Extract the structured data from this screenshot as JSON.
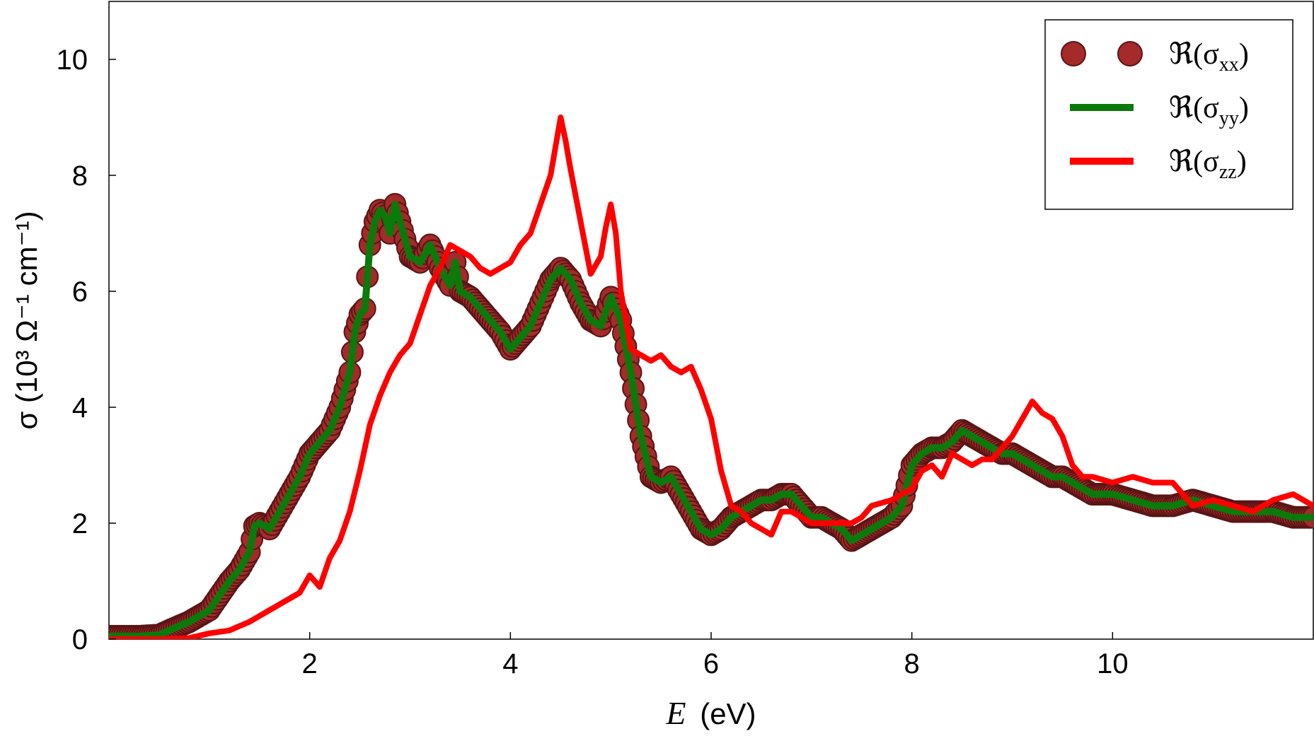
{
  "chart_data": {
    "type": "line",
    "xlabel": "E (eV)",
    "xlabel_var": "E",
    "xlabel_unit": "(eV)",
    "ylabel": "σ (10³ Ω⁻¹ cm⁻¹)",
    "xlim": [
      0,
      12
    ],
    "ylim": [
      0,
      11
    ],
    "x_ticks": [
      2,
      4,
      6,
      8,
      10
    ],
    "y_ticks": [
      0,
      2,
      4,
      6,
      8,
      10
    ],
    "grid": false,
    "legend_position": "top-right",
    "series": [
      {
        "name": "ℜ(σxx)",
        "legend_prefix": "ℜ(σ",
        "legend_sub": "xx",
        "legend_suffix": ")",
        "style": "markers",
        "color": "#a52a2a",
        "edge_color": "#5a1414",
        "x": [
          0.0,
          0.3,
          0.5,
          0.6,
          0.8,
          1.0,
          1.1,
          1.2,
          1.3,
          1.4,
          1.45,
          1.5,
          1.6,
          1.7,
          1.8,
          1.9,
          2.0,
          2.1,
          2.2,
          2.3,
          2.4,
          2.45,
          2.5,
          2.55,
          2.6,
          2.65,
          2.7,
          2.75,
          2.8,
          2.85,
          2.9,
          3.0,
          3.1,
          3.2,
          3.3,
          3.4,
          3.45,
          3.5,
          3.6,
          3.7,
          3.8,
          3.9,
          4.0,
          4.1,
          4.2,
          4.3,
          4.4,
          4.5,
          4.6,
          4.7,
          4.8,
          4.9,
          5.0,
          5.1,
          5.2,
          5.3,
          5.4,
          5.5,
          5.6,
          5.7,
          5.8,
          5.9,
          6.0,
          6.1,
          6.2,
          6.3,
          6.4,
          6.5,
          6.6,
          6.7,
          6.8,
          6.9,
          7.0,
          7.1,
          7.2,
          7.3,
          7.4,
          7.5,
          7.6,
          7.7,
          7.8,
          7.9,
          8.0,
          8.1,
          8.2,
          8.3,
          8.4,
          8.5,
          8.6,
          8.7,
          8.8,
          8.9,
          9.0,
          9.1,
          9.2,
          9.3,
          9.4,
          9.5,
          9.6,
          9.7,
          9.8,
          9.9,
          10.0,
          10.2,
          10.4,
          10.6,
          10.8,
          11.0,
          11.2,
          11.4,
          11.6,
          11.8,
          12.0
        ],
        "y": [
          0.05,
          0.05,
          0.07,
          0.15,
          0.3,
          0.5,
          0.75,
          1.0,
          1.2,
          1.5,
          1.95,
          2.0,
          1.9,
          2.2,
          2.5,
          2.8,
          3.2,
          3.4,
          3.6,
          4.0,
          4.6,
          5.3,
          5.6,
          5.7,
          6.8,
          7.2,
          7.4,
          7.3,
          7.0,
          7.5,
          7.2,
          6.6,
          6.5,
          6.8,
          6.4,
          6.1,
          6.5,
          6.0,
          5.9,
          5.7,
          5.5,
          5.3,
          5.0,
          5.2,
          5.4,
          5.8,
          6.2,
          6.4,
          6.2,
          5.8,
          5.5,
          5.4,
          5.9,
          5.5,
          4.6,
          3.5,
          2.8,
          2.7,
          2.8,
          2.5,
          2.2,
          1.9,
          1.8,
          1.9,
          2.1,
          2.2,
          2.3,
          2.4,
          2.4,
          2.5,
          2.5,
          2.3,
          2.1,
          2.1,
          2.0,
          1.9,
          1.7,
          1.8,
          1.9,
          2.0,
          2.1,
          2.3,
          3.0,
          3.2,
          3.3,
          3.3,
          3.4,
          3.6,
          3.5,
          3.4,
          3.3,
          3.2,
          3.2,
          3.1,
          3.0,
          2.9,
          2.8,
          2.8,
          2.7,
          2.6,
          2.5,
          2.5,
          2.5,
          2.4,
          2.3,
          2.3,
          2.4,
          2.3,
          2.2,
          2.2,
          2.2,
          2.1,
          2.1
        ]
      },
      {
        "name": "ℜ(σyy)",
        "legend_prefix": "ℜ(σ",
        "legend_sub": "yy",
        "legend_suffix": ")",
        "style": "line",
        "color": "#0a7a0a",
        "x": [
          0.0,
          0.3,
          0.5,
          0.6,
          0.8,
          1.0,
          1.1,
          1.2,
          1.3,
          1.4,
          1.45,
          1.5,
          1.6,
          1.7,
          1.8,
          1.9,
          2.0,
          2.1,
          2.2,
          2.3,
          2.4,
          2.45,
          2.5,
          2.55,
          2.6,
          2.65,
          2.7,
          2.75,
          2.8,
          2.85,
          2.9,
          3.0,
          3.1,
          3.2,
          3.3,
          3.4,
          3.45,
          3.5,
          3.6,
          3.7,
          3.8,
          3.9,
          4.0,
          4.1,
          4.2,
          4.3,
          4.4,
          4.5,
          4.6,
          4.7,
          4.8,
          4.9,
          5.0,
          5.1,
          5.2,
          5.3,
          5.4,
          5.5,
          5.6,
          5.7,
          5.8,
          5.9,
          6.0,
          6.1,
          6.2,
          6.3,
          6.4,
          6.5,
          6.6,
          6.7,
          6.8,
          6.9,
          7.0,
          7.1,
          7.2,
          7.3,
          7.4,
          7.5,
          7.6,
          7.7,
          7.8,
          7.9,
          8.0,
          8.1,
          8.2,
          8.3,
          8.4,
          8.5,
          8.6,
          8.7,
          8.8,
          8.9,
          9.0,
          9.1,
          9.2,
          9.3,
          9.4,
          9.5,
          9.6,
          9.7,
          9.8,
          9.9,
          10.0,
          10.2,
          10.4,
          10.6,
          10.8,
          11.0,
          11.2,
          11.4,
          11.6,
          11.8,
          12.0
        ],
        "y": [
          0.05,
          0.05,
          0.07,
          0.15,
          0.3,
          0.5,
          0.75,
          1.0,
          1.2,
          1.5,
          1.95,
          2.0,
          1.9,
          2.2,
          2.5,
          2.8,
          3.2,
          3.4,
          3.6,
          4.0,
          4.6,
          5.3,
          5.6,
          5.7,
          6.8,
          7.2,
          7.4,
          7.3,
          7.0,
          7.5,
          7.2,
          6.6,
          6.5,
          6.8,
          6.4,
          6.1,
          6.5,
          6.0,
          5.9,
          5.7,
          5.5,
          5.3,
          5.0,
          5.2,
          5.4,
          5.8,
          6.2,
          6.4,
          6.2,
          5.8,
          5.5,
          5.4,
          5.9,
          5.5,
          4.6,
          3.5,
          2.8,
          2.7,
          2.8,
          2.5,
          2.2,
          1.9,
          1.8,
          1.9,
          2.1,
          2.2,
          2.3,
          2.4,
          2.4,
          2.5,
          2.5,
          2.3,
          2.1,
          2.1,
          2.0,
          1.9,
          1.7,
          1.8,
          1.9,
          2.0,
          2.1,
          2.3,
          3.0,
          3.2,
          3.3,
          3.3,
          3.4,
          3.6,
          3.5,
          3.4,
          3.3,
          3.2,
          3.2,
          3.1,
          3.0,
          2.9,
          2.8,
          2.8,
          2.7,
          2.6,
          2.5,
          2.5,
          2.5,
          2.4,
          2.3,
          2.3,
          2.4,
          2.3,
          2.2,
          2.2,
          2.2,
          2.1,
          2.1
        ]
      },
      {
        "name": "ℜ(σzz)",
        "legend_prefix": "ℜ(σ",
        "legend_sub": "zz",
        "legend_suffix": ")",
        "style": "line",
        "color": "#ff0000",
        "x": [
          0.0,
          0.5,
          0.8,
          1.0,
          1.2,
          1.4,
          1.6,
          1.8,
          1.9,
          2.0,
          2.1,
          2.2,
          2.3,
          2.4,
          2.5,
          2.6,
          2.7,
          2.8,
          2.9,
          3.0,
          3.1,
          3.2,
          3.3,
          3.4,
          3.5,
          3.6,
          3.7,
          3.8,
          3.9,
          4.0,
          4.1,
          4.2,
          4.3,
          4.4,
          4.45,
          4.5,
          4.55,
          4.6,
          4.7,
          4.8,
          4.9,
          4.95,
          5.0,
          5.05,
          5.1,
          5.2,
          5.3,
          5.4,
          5.5,
          5.6,
          5.7,
          5.8,
          5.9,
          6.0,
          6.1,
          6.2,
          6.3,
          6.4,
          6.5,
          6.6,
          6.7,
          6.8,
          6.9,
          7.0,
          7.2,
          7.4,
          7.5,
          7.6,
          7.8,
          8.0,
          8.1,
          8.2,
          8.3,
          8.4,
          8.5,
          8.6,
          8.7,
          8.8,
          9.0,
          9.1,
          9.2,
          9.25,
          9.3,
          9.4,
          9.5,
          9.6,
          9.7,
          9.8,
          10.0,
          10.2,
          10.4,
          10.6,
          10.8,
          11.0,
          11.2,
          11.4,
          11.6,
          11.8,
          12.0
        ],
        "y": [
          0.0,
          0.0,
          0.02,
          0.1,
          0.15,
          0.3,
          0.5,
          0.7,
          0.8,
          1.1,
          0.9,
          1.4,
          1.7,
          2.2,
          2.9,
          3.7,
          4.2,
          4.6,
          4.9,
          5.1,
          5.6,
          6.1,
          6.4,
          6.8,
          6.7,
          6.6,
          6.4,
          6.3,
          6.4,
          6.5,
          6.8,
          7.0,
          7.5,
          8.0,
          8.5,
          9.0,
          8.6,
          8.1,
          7.2,
          6.3,
          6.6,
          7.1,
          7.5,
          7.0,
          6.0,
          5.0,
          4.9,
          4.8,
          4.9,
          4.7,
          4.6,
          4.7,
          4.3,
          3.8,
          2.9,
          2.3,
          2.2,
          2.0,
          1.9,
          1.8,
          2.2,
          2.2,
          2.1,
          2.0,
          2.0,
          2.0,
          2.1,
          2.3,
          2.4,
          2.6,
          2.9,
          3.0,
          2.8,
          3.2,
          3.1,
          3.0,
          3.1,
          3.1,
          3.5,
          3.8,
          4.1,
          4.0,
          3.9,
          3.8,
          3.5,
          3.0,
          2.8,
          2.8,
          2.7,
          2.8,
          2.7,
          2.7,
          2.3,
          2.4,
          2.3,
          2.2,
          2.4,
          2.5,
          2.3
        ]
      }
    ]
  }
}
